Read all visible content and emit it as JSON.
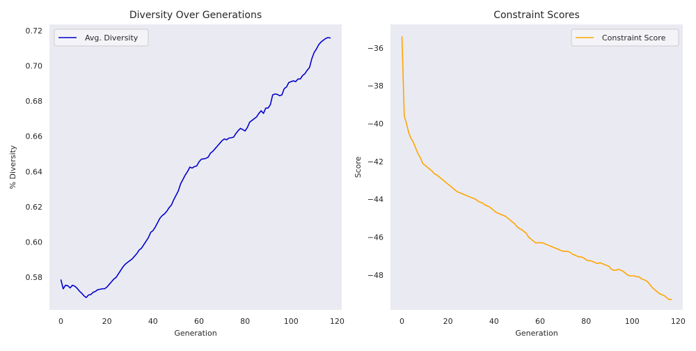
{
  "colors": {
    "panel_bg": "#EAEAF2",
    "diversity_line": "#0000CC",
    "constraint_line": "#FFA500",
    "legend_bg": "#F4F4F8",
    "legend_border": "#CCCCCC"
  },
  "chart_data": [
    {
      "type": "line",
      "title": "Diversity Over Generations",
      "xlabel": "Generation",
      "ylabel": "% Diversity",
      "xlim": [
        -5,
        122
      ],
      "ylim": [
        0.5615,
        0.7235
      ],
      "xticks": [
        0,
        20,
        40,
        60,
        80,
        100,
        120
      ],
      "yticks": [
        0.58,
        0.6,
        0.62,
        0.64,
        0.66,
        0.68,
        0.7,
        0.72
      ],
      "xtick_labels": [
        "0",
        "20",
        "40",
        "60",
        "80",
        "100",
        "120"
      ],
      "ytick_labels": [
        "0.58",
        "0.60",
        "0.62",
        "0.64",
        "0.66",
        "0.68",
        "0.70",
        "0.72"
      ],
      "grid": false,
      "legend": "top-left",
      "series": [
        {
          "name": "Avg. Diversity",
          "color": "#0000CC",
          "x": [
            0,
            1,
            2,
            3,
            4,
            5,
            6,
            7,
            8,
            9,
            10,
            11,
            12,
            13,
            14,
            15,
            16,
            17,
            18,
            19,
            20,
            21,
            22,
            23,
            24,
            25,
            26,
            27,
            28,
            29,
            30,
            31,
            32,
            33,
            34,
            35,
            36,
            37,
            38,
            39,
            40,
            41,
            42,
            43,
            44,
            45,
            46,
            47,
            48,
            49,
            50,
            51,
            52,
            53,
            54,
            55,
            56,
            57,
            58,
            59,
            60,
            61,
            62,
            63,
            64,
            65,
            66,
            67,
            68,
            69,
            70,
            71,
            72,
            73,
            74,
            75,
            76,
            77,
            78,
            79,
            80,
            81,
            82,
            83,
            84,
            85,
            86,
            87,
            88,
            89,
            90,
            91,
            92,
            93,
            94,
            95,
            96,
            97,
            98,
            99,
            100,
            101,
            102,
            103,
            104,
            105,
            106,
            107,
            108,
            109,
            110,
            111,
            112,
            113,
            114,
            115,
            116,
            117
          ],
          "y": [
            0.5785,
            0.5735,
            0.5755,
            0.5752,
            0.574,
            0.5755,
            0.575,
            0.5738,
            0.5722,
            0.571,
            0.5695,
            0.5685,
            0.57,
            0.5702,
            0.5715,
            0.572,
            0.573,
            0.5732,
            0.5735,
            0.5735,
            0.5745,
            0.576,
            0.5775,
            0.579,
            0.58,
            0.582,
            0.584,
            0.586,
            0.5875,
            0.5885,
            0.5895,
            0.5905,
            0.592,
            0.5935,
            0.5955,
            0.5965,
            0.5985,
            0.6005,
            0.6025,
            0.6055,
            0.6065,
            0.6085,
            0.611,
            0.6135,
            0.615,
            0.616,
            0.6175,
            0.6195,
            0.621,
            0.624,
            0.6265,
            0.629,
            0.633,
            0.6355,
            0.638,
            0.64,
            0.6425,
            0.642,
            0.6428,
            0.6432,
            0.6455,
            0.647,
            0.6472,
            0.6475,
            0.6482,
            0.6505,
            0.6515,
            0.653,
            0.6545,
            0.656,
            0.6575,
            0.6585,
            0.658,
            0.659,
            0.6592,
            0.6595,
            0.6615,
            0.6632,
            0.6645,
            0.6638,
            0.663,
            0.665,
            0.668,
            0.669,
            0.67,
            0.671,
            0.673,
            0.6745,
            0.673,
            0.676,
            0.676,
            0.678,
            0.6835,
            0.684,
            0.6838,
            0.683,
            0.6835,
            0.687,
            0.688,
            0.6905,
            0.691,
            0.6915,
            0.691,
            0.6925,
            0.6925,
            0.6945,
            0.6955,
            0.6975,
            0.699,
            0.704,
            0.7075,
            0.7095,
            0.712,
            0.7135,
            0.7145,
            0.7155,
            0.716,
            0.7158
          ]
        }
      ]
    },
    {
      "type": "line",
      "title": "Constraint Scores",
      "xlabel": "Generation",
      "ylabel": "Score",
      "xlim": [
        -5,
        122
      ],
      "ylim": [
        -49.85,
        -34.75
      ],
      "xticks": [
        0,
        20,
        40,
        60,
        80,
        100,
        120
      ],
      "yticks": [
        -48,
        -46,
        -44,
        -42,
        -40,
        -38,
        -36
      ],
      "xtick_labels": [
        "0",
        "20",
        "40",
        "60",
        "80",
        "100",
        "120"
      ],
      "ytick_labels": [
        "−48",
        "−46",
        "−44",
        "−42",
        "−40",
        "−38",
        "−36"
      ],
      "grid": false,
      "legend": "top-right",
      "series": [
        {
          "name": "Constraint Score",
          "color": "#FFA500",
          "x": [
            0,
            1,
            2,
            3,
            4,
            5,
            6,
            7,
            8,
            9,
            10,
            11,
            12,
            13,
            14,
            15,
            16,
            17,
            18,
            19,
            20,
            21,
            22,
            23,
            24,
            25,
            26,
            27,
            28,
            29,
            30,
            31,
            32,
            33,
            34,
            35,
            36,
            37,
            38,
            39,
            40,
            41,
            42,
            43,
            44,
            45,
            46,
            47,
            48,
            49,
            50,
            51,
            52,
            53,
            54,
            55,
            56,
            57,
            58,
            59,
            60,
            61,
            62,
            63,
            64,
            65,
            66,
            67,
            68,
            69,
            70,
            71,
            72,
            73,
            74,
            75,
            76,
            77,
            78,
            79,
            80,
            81,
            82,
            83,
            84,
            85,
            86,
            87,
            88,
            89,
            90,
            91,
            92,
            93,
            94,
            95,
            96,
            97,
            98,
            99,
            100,
            101,
            102,
            103,
            104,
            105,
            106,
            107,
            108,
            109,
            110,
            111,
            112,
            113,
            114,
            115,
            116,
            117
          ],
          "y": [
            -35.4,
            -39.6,
            -40.0,
            -40.5,
            -40.8,
            -41.0,
            -41.3,
            -41.6,
            -41.8,
            -42.1,
            -42.2,
            -42.3,
            -42.4,
            -42.5,
            -42.65,
            -42.7,
            -42.8,
            -42.9,
            -43.0,
            -43.1,
            -43.2,
            -43.3,
            -43.4,
            -43.5,
            -43.6,
            -43.65,
            -43.7,
            -43.75,
            -43.8,
            -43.85,
            -43.9,
            -43.95,
            -44.0,
            -44.1,
            -44.15,
            -44.2,
            -44.3,
            -44.35,
            -44.4,
            -44.5,
            -44.6,
            -44.7,
            -44.75,
            -44.8,
            -44.85,
            -44.9,
            -45.0,
            -45.1,
            -45.2,
            -45.3,
            -45.45,
            -45.55,
            -45.6,
            -45.7,
            -45.8,
            -46.0,
            -46.1,
            -46.2,
            -46.3,
            -46.3,
            -46.3,
            -46.3,
            -46.35,
            -46.4,
            -46.45,
            -46.5,
            -46.55,
            -46.6,
            -46.65,
            -46.7,
            -46.75,
            -46.75,
            -46.75,
            -46.8,
            -46.9,
            -46.95,
            -47.0,
            -47.05,
            -47.05,
            -47.1,
            -47.2,
            -47.25,
            -47.25,
            -47.3,
            -47.35,
            -47.4,
            -47.35,
            -47.4,
            -47.45,
            -47.5,
            -47.55,
            -47.7,
            -47.75,
            -47.75,
            -47.7,
            -47.75,
            -47.8,
            -47.9,
            -48.0,
            -48.05,
            -48.05,
            -48.05,
            -48.1,
            -48.1,
            -48.2,
            -48.25,
            -48.3,
            -48.4,
            -48.55,
            -48.7,
            -48.8,
            -48.9,
            -49.0,
            -49.05,
            -49.1,
            -49.2,
            -49.3,
            -49.3
          ]
        }
      ]
    }
  ]
}
